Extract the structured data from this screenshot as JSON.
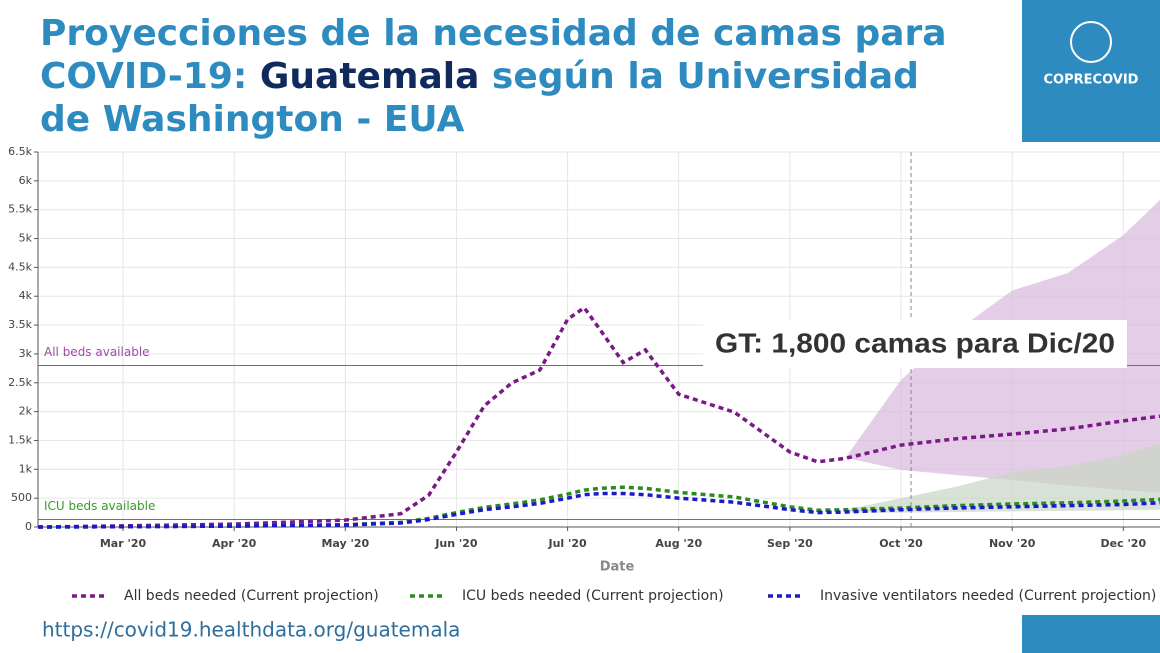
{
  "header": {
    "title_parts": [
      "Proyecciones de la necesidad de camas para",
      "COVID-19: ",
      "Guatemala",
      " según la Universidad",
      "de Washington - EUA"
    ],
    "logo": "COPRECOVID",
    "url": "https://covid19.healthdata.org/guatemala"
  },
  "chart_data": {
    "type": "line",
    "xlabel": "Date",
    "annotation": "GT: 1,800 camas para Dic/20",
    "projection_start": 10.09,
    "x": [
      2.235,
      3,
      4,
      5,
      5.5,
      5.75,
      6,
      6.25,
      6.5,
      6.75,
      7,
      7.15,
      7.3,
      7.5,
      7.7,
      8,
      8.5,
      9,
      9.25,
      9.5,
      10,
      10.5,
      11,
      11.5,
      12,
      12.33
    ],
    "xlim": [
      2.235,
      12.33
    ],
    "xticks": [
      {
        "value": 3,
        "label": "Mar '20"
      },
      {
        "value": 4,
        "label": "Apr '20"
      },
      {
        "value": 5,
        "label": "May '20"
      },
      {
        "value": 6,
        "label": "Jun '20"
      },
      {
        "value": 7,
        "label": "Jul '20"
      },
      {
        "value": 8,
        "label": "Aug '20"
      },
      {
        "value": 9,
        "label": "Sep '20"
      },
      {
        "value": 10,
        "label": "Oct '20"
      },
      {
        "value": 11,
        "label": "Nov '20"
      },
      {
        "value": 12,
        "label": "Dec '20"
      }
    ],
    "ylim": [
      0,
      6500
    ],
    "yticks": [
      0,
      500,
      {
        "value": 1000,
        "label": "1k"
      },
      {
        "value": 1500,
        "label": "1.5k"
      },
      {
        "value": 2000,
        "label": "2k"
      },
      {
        "value": 2500,
        "label": "2.5k"
      },
      {
        "value": 3000,
        "label": "3k"
      },
      {
        "value": 3500,
        "label": "3.5k"
      },
      {
        "value": 4000,
        "label": "4k"
      },
      {
        "value": 4500,
        "label": "4.5k"
      },
      {
        "value": 5000,
        "label": "5k"
      },
      {
        "value": 5500,
        "label": "5.5k"
      },
      {
        "value": 6000,
        "label": "6k"
      },
      {
        "value": 6500,
        "label": "6.5k"
      }
    ],
    "grid": true,
    "reference_lines": [
      {
        "label": "All beds available",
        "value": 2800,
        "color": "#a24aa8"
      },
      {
        "label": "ICU beds available",
        "value": 130,
        "color": "#3a9a2a"
      }
    ],
    "series": [
      {
        "name": "All beds needed (Current projection)",
        "color": "#7a1a86",
        "band_color": "#d9b8dd",
        "values": [
          0,
          20,
          50,
          120,
          230,
          550,
          1300,
          2100,
          2500,
          2720,
          3600,
          3800,
          3400,
          2850,
          3070,
          2300,
          1990,
          1300,
          1130,
          1190,
          1420,
          1530,
          1610,
          1700,
          1840,
          1920
        ],
        "upper": [
          null,
          null,
          null,
          null,
          null,
          null,
          null,
          null,
          null,
          null,
          null,
          null,
          null,
          null,
          null,
          null,
          null,
          null,
          null,
          1200,
          2550,
          3400,
          4100,
          4400,
          5060,
          5670
        ],
        "lower": [
          null,
          null,
          null,
          null,
          null,
          null,
          null,
          null,
          null,
          null,
          null,
          null,
          null,
          null,
          null,
          null,
          null,
          null,
          null,
          1200,
          990,
          900,
          815,
          720,
          640,
          600
        ]
      },
      {
        "name": "ICU beds needed (Current projection)",
        "color": "#2e8a1e",
        "band_color": "#c9d6c4",
        "values": [
          0,
          5,
          15,
          40,
          80,
          150,
          250,
          340,
          400,
          470,
          570,
          640,
          670,
          690,
          670,
          600,
          520,
          350,
          290,
          300,
          330,
          370,
          400,
          420,
          450,
          480
        ],
        "upper": [
          null,
          null,
          null,
          null,
          null,
          null,
          null,
          null,
          null,
          null,
          null,
          null,
          null,
          null,
          null,
          null,
          null,
          null,
          null,
          300,
          500,
          700,
          950,
          1050,
          1250,
          1450
        ],
        "lower": [
          null,
          null,
          null,
          null,
          null,
          null,
          null,
          null,
          null,
          null,
          null,
          null,
          null,
          null,
          null,
          null,
          null,
          null,
          null,
          250,
          250,
          260,
          270,
          280,
          290,
          300
        ]
      },
      {
        "name": "Invasive ventilators needed (Current projection)",
        "color": "#1a1acc",
        "values": [
          0,
          5,
          15,
          35,
          70,
          130,
          220,
          300,
          350,
          410,
          500,
          560,
          580,
          580,
          560,
          500,
          430,
          300,
          250,
          260,
          300,
          330,
          350,
          370,
          390,
          420
        ]
      }
    ]
  }
}
